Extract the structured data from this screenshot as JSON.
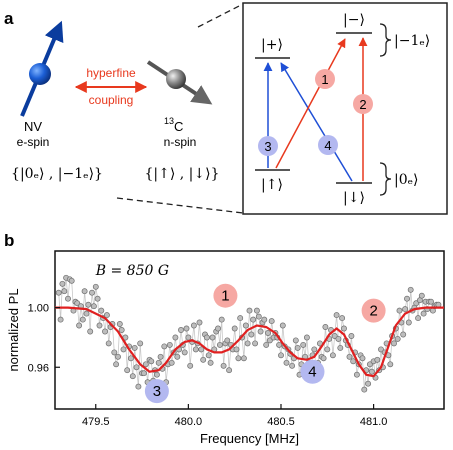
{
  "panel_a": {
    "label": "a",
    "nv_name": "NV",
    "nv_desc": "e-spin",
    "nv_basis": "{|0ₑ⟩ , |−1ₑ⟩}",
    "c13_name_sup": "13",
    "c13_name": "C",
    "c13_desc": "n-spin",
    "c13_basis": "{|↑⟩ , |↓⟩}",
    "coupling_line1": "hyperfine",
    "coupling_line2": "coupling",
    "levels": {
      "plus": "|+⟩",
      "minus": "|−⟩",
      "up": "|↑⟩",
      "down": "|↓⟩",
      "group_top": "|−1ₑ⟩",
      "group_bottom": "|0ₑ⟩"
    },
    "transitions": [
      "1",
      "2",
      "3",
      "4"
    ],
    "colors": {
      "blue": "#1f4fd6",
      "red": "#e8391e",
      "pink_circle": "#f6a8a3",
      "blue_circle": "#b3b8f0"
    }
  },
  "panel_b": {
    "label": "b"
  },
  "chart_data": {
    "type": "scatter",
    "annotation": "B = 850 G",
    "xlabel": "Frequency [MHz]",
    "ylabel": "normalized PL",
    "xlim": [
      479.28,
      481.38
    ],
    "ylim": [
      0.932,
      1.038
    ],
    "xticks": [
      479.5,
      480.0,
      480.5,
      481.0
    ],
    "xtick_labels": [
      "479.5",
      "480.0",
      "480.5",
      "481.0"
    ],
    "yticks": [
      0.96,
      1.0
    ],
    "ytick_labels": [
      "0.96",
      "1.00"
    ],
    "peak_labels": [
      {
        "label": "1",
        "x": 480.2,
        "y": 1.008,
        "color": "#f6a8a3"
      },
      {
        "label": "2",
        "x": 481.0,
        "y": 0.998,
        "color": "#f6a8a3"
      },
      {
        "label": "3",
        "x": 479.83,
        "y": 0.944,
        "color": "#b3b8f0"
      },
      {
        "label": "4",
        "x": 480.67,
        "y": 0.957,
        "color": "#b3b8f0"
      }
    ],
    "fit": {
      "name": "fit",
      "color": "#e02020",
      "x": [
        479.28,
        479.35,
        479.45,
        479.55,
        479.62,
        479.68,
        479.74,
        479.79,
        479.84,
        479.88,
        479.93,
        479.98,
        480.02,
        480.06,
        480.1,
        480.14,
        480.18,
        480.22,
        480.27,
        480.32,
        480.37,
        480.42,
        480.47,
        480.51,
        480.55,
        480.59,
        480.64,
        480.68,
        480.72,
        480.76,
        480.8,
        480.84,
        480.88,
        480.92,
        480.96,
        481.0,
        481.04,
        481.08,
        481.12,
        481.17,
        481.22,
        481.28,
        481.34,
        481.38
      ],
      "y": [
        1.0,
        1.0,
        0.999,
        0.993,
        0.984,
        0.972,
        0.962,
        0.957,
        0.958,
        0.963,
        0.972,
        0.977,
        0.978,
        0.976,
        0.972,
        0.97,
        0.97,
        0.972,
        0.978,
        0.985,
        0.988,
        0.987,
        0.983,
        0.976,
        0.97,
        0.966,
        0.965,
        0.967,
        0.974,
        0.982,
        0.986,
        0.982,
        0.972,
        0.962,
        0.955,
        0.954,
        0.96,
        0.974,
        0.988,
        0.996,
        0.999,
        1.0,
        1.0,
        1.0
      ]
    },
    "series": [
      {
        "name": "data",
        "color": "#9a9a9a",
        "x": [
          479.3,
          479.31,
          479.32,
          479.33,
          479.34,
          479.35,
          479.36,
          479.37,
          479.38,
          479.39,
          479.4,
          479.41,
          479.42,
          479.43,
          479.44,
          479.45,
          479.46,
          479.47,
          479.48,
          479.49,
          479.5,
          479.51,
          479.52,
          479.53,
          479.54,
          479.55,
          479.56,
          479.57,
          479.58,
          479.59,
          479.6,
          479.61,
          479.62,
          479.63,
          479.64,
          479.65,
          479.66,
          479.67,
          479.68,
          479.69,
          479.7,
          479.71,
          479.72,
          479.73,
          479.74,
          479.75,
          479.76,
          479.77,
          479.78,
          479.79,
          479.8,
          479.81,
          479.82,
          479.83,
          479.84,
          479.85,
          479.86,
          479.87,
          479.88,
          479.89,
          479.9,
          479.91,
          479.92,
          479.93,
          479.94,
          479.95,
          479.96,
          479.97,
          479.98,
          479.99,
          480.0,
          480.01,
          480.02,
          480.03,
          480.04,
          480.05,
          480.06,
          480.07,
          480.08,
          480.09,
          480.1,
          480.11,
          480.12,
          480.13,
          480.14,
          480.15,
          480.16,
          480.17,
          480.18,
          480.19,
          480.2,
          480.21,
          480.22,
          480.23,
          480.24,
          480.25,
          480.26,
          480.27,
          480.28,
          480.29,
          480.3,
          480.31,
          480.32,
          480.33,
          480.34,
          480.35,
          480.36,
          480.37,
          480.38,
          480.39,
          480.4,
          480.41,
          480.42,
          480.43,
          480.44,
          480.45,
          480.46,
          480.47,
          480.48,
          480.49,
          480.5,
          480.51,
          480.52,
          480.53,
          480.54,
          480.55,
          480.56,
          480.57,
          480.58,
          480.59,
          480.6,
          480.61,
          480.62,
          480.63,
          480.64,
          480.65,
          480.66,
          480.67,
          480.68,
          480.69,
          480.7,
          480.71,
          480.72,
          480.73,
          480.74,
          480.75,
          480.76,
          480.77,
          480.78,
          480.79,
          480.8,
          480.81,
          480.82,
          480.83,
          480.84,
          480.85,
          480.86,
          480.87,
          480.88,
          480.89,
          480.9,
          480.91,
          480.92,
          480.93,
          480.94,
          480.95,
          480.96,
          480.97,
          480.98,
          480.99,
          481.0,
          481.01,
          481.02,
          481.03,
          481.04,
          481.05,
          481.06,
          481.07,
          481.08,
          481.09,
          481.1,
          481.11,
          481.12,
          481.13,
          481.14,
          481.15,
          481.16,
          481.17,
          481.18,
          481.19,
          481.2,
          481.21,
          481.22,
          481.23,
          481.24,
          481.25,
          481.26,
          481.27,
          481.28,
          481.29,
          481.3,
          481.31,
          481.32,
          481.33,
          481.34,
          481.35
        ],
        "y": [
          1.01,
          0.992,
          1.016,
          1.011,
          1.02,
          1.006,
          1.019,
          1.018,
          0.998,
          1.004,
          1.003,
          0.988,
          1.001,
          0.992,
          1.011,
          0.996,
          1.002,
          0.984,
          1.01,
          1.001,
          1.014,
          1.006,
          0.988,
          0.998,
          0.993,
          0.984,
          0.995,
          0.976,
          0.987,
          0.989,
          0.97,
          0.962,
          0.967,
          0.989,
          0.985,
          0.972,
          0.98,
          0.958,
          0.974,
          0.966,
          0.954,
          0.973,
          0.96,
          0.947,
          0.976,
          0.956,
          0.956,
          0.962,
          0.95,
          0.965,
          0.964,
          0.951,
          0.958,
          0.955,
          0.963,
          0.967,
          0.959,
          0.974,
          0.95,
          0.962,
          0.975,
          0.963,
          0.97,
          0.98,
          0.967,
          0.972,
          0.985,
          0.975,
          0.97,
          0.986,
          0.98,
          0.961,
          0.977,
          0.988,
          0.972,
          0.976,
          0.99,
          0.972,
          0.965,
          0.982,
          0.98,
          0.968,
          0.963,
          0.98,
          0.972,
          0.984,
          0.986,
          0.975,
          0.992,
          0.961,
          0.976,
          0.978,
          0.958,
          0.975,
          0.972,
          0.986,
          0.972,
          0.966,
          0.993,
          0.98,
          0.966,
          0.988,
          0.976,
          0.998,
          0.982,
          0.992,
          0.976,
          0.998,
          0.994,
          0.984,
          0.99,
          0.992,
          0.975,
          0.983,
          0.978,
          0.991,
          0.98,
          0.983,
          0.98,
          0.975,
          0.968,
          0.988,
          0.974,
          0.963,
          0.972,
          0.969,
          0.961,
          0.966,
          0.978,
          0.973,
          0.955,
          0.962,
          0.975,
          0.967,
          0.98,
          0.963,
          0.952,
          0.968,
          0.972,
          0.958,
          0.963,
          0.976,
          0.967,
          0.966,
          0.987,
          0.972,
          0.979,
          0.985,
          0.968,
          0.981,
          0.995,
          0.979,
          0.973,
          0.993,
          0.986,
          0.978,
          0.975,
          0.967,
          0.981,
          0.964,
          0.97,
          0.955,
          0.962,
          0.968,
          0.966,
          0.945,
          0.958,
          0.949,
          0.962,
          0.957,
          0.964,
          0.953,
          0.965,
          0.958,
          0.972,
          0.96,
          0.97,
          0.976,
          0.968,
          0.962,
          0.981,
          0.976,
          0.986,
          0.979,
          0.998,
          0.99,
          0.982,
          0.999,
          1.006,
          0.99,
          1.012,
          0.998,
          1.0,
          1.003,
          0.993,
          1.005,
          1.008,
          0.996,
          1.004,
          0.999,
          1.004,
          1.004,
          0.998,
          1.001,
          1.002,
          1.002
        ]
      }
    ]
  }
}
